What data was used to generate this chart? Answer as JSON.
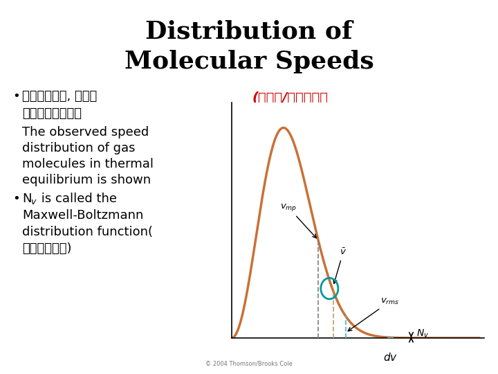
{
  "title_line1": "Distribution of",
  "title_line2": "Molecular Speeds",
  "title_fontsize": 26,
  "bg_color": "#ffffff",
  "bullet1_zh1": "熱平衡狀態下, 氣體的",
  "bullet1_zh2": "分子速率分佈如圖",
  "bullet1_en1": "The observed speed",
  "bullet1_en2": "distribution of gas",
  "bullet1_en3": "molecules in thermal",
  "bullet1_en4": "equilibrium is shown",
  "bullet2_en1": "N",
  "bullet2_sub": "v",
  "bullet2_en2": " is called the",
  "bullet2_en3": "Maxwell-Boltzmann",
  "bullet2_en4": "distribution function(",
  "bullet2_zh3": "速率分佈函數)",
  "curve_color": "#c87137",
  "dashed_vmp_color": "#888888",
  "dashed_vavg_color": "#c8a070",
  "dashed_vrms_color": "#55bbbb",
  "bar_color": "#44bbdd",
  "teal_color": "#009999",
  "red_color": "#cc0000",
  "copyright": "© 2004 Thomson/Brooks Cole",
  "Nv_label": "N_v",
  "red_annotation": "(粒子數/單位速率）"
}
